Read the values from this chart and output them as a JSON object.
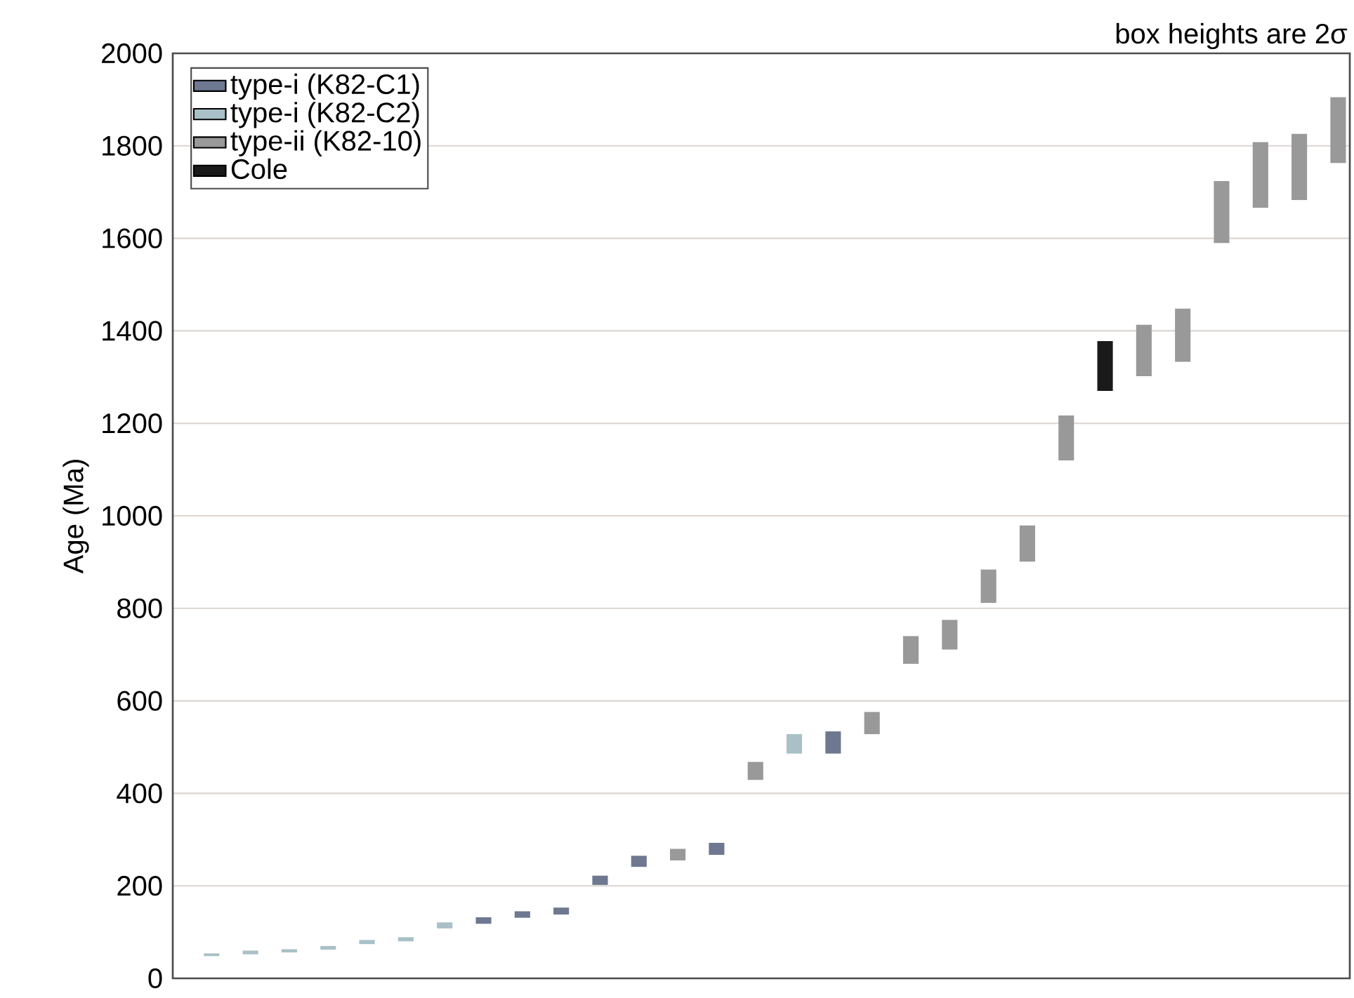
{
  "chart_data": {
    "type": "bar",
    "annotations": [
      "box heights are 2σ"
    ],
    "ylabel": "Age (Ma)",
    "categories": [
      null,
      null,
      null,
      null,
      null,
      null,
      null,
      null,
      null,
      null,
      null,
      null,
      null,
      null,
      null,
      null,
      null,
      null,
      null,
      null,
      null,
      null,
      null,
      null,
      null,
      null,
      null,
      null,
      null,
      null
    ],
    "series": [
      {
        "name": "type-i  (K82-C1)",
        "color": "#6e7890",
        "values": [
          null,
          null,
          null,
          null,
          null,
          null,
          null,
          14,
          14,
          15,
          20,
          24,
          null,
          26,
          null,
          null,
          48,
          null,
          null,
          null,
          null,
          null,
          null,
          null,
          null,
          null,
          null,
          null,
          null,
          null
        ],
        "base": [
          null,
          null,
          null,
          null,
          null,
          null,
          null,
          118,
          131,
          138,
          202,
          241,
          null,
          267,
          null,
          null,
          486,
          null,
          null,
          null,
          null,
          null,
          null,
          null,
          null,
          null,
          null,
          null,
          null,
          null
        ]
      },
      {
        "name": "type-i  (K82-C2)",
        "color": "#a9c0c8",
        "values": [
          6,
          8,
          7,
          8,
          9,
          9,
          13,
          null,
          null,
          null,
          null,
          null,
          null,
          null,
          null,
          42,
          null,
          null,
          null,
          null,
          null,
          null,
          null,
          null,
          null,
          null,
          null,
          null,
          null,
          null
        ],
        "base": [
          48,
          52,
          56,
          62,
          74,
          80,
          108,
          null,
          null,
          null,
          null,
          null,
          null,
          null,
          null,
          486,
          null,
          null,
          null,
          null,
          null,
          null,
          null,
          null,
          null,
          null,
          null,
          null,
          null,
          null
        ]
      },
      {
        "name": "type-ii (K82-10)",
        "color": "#999999",
        "values": [
          null,
          null,
          null,
          null,
          null,
          null,
          null,
          null,
          null,
          null,
          null,
          null,
          25,
          null,
          39,
          null,
          null,
          48,
          60,
          64,
          72,
          78,
          97,
          null,
          111,
          115,
          134,
          142,
          143,
          142
        ],
        "base": [
          null,
          null,
          null,
          null,
          null,
          null,
          null,
          null,
          null,
          null,
          null,
          null,
          255,
          null,
          429,
          null,
          null,
          528,
          680,
          711,
          812,
          901,
          1120,
          null,
          1302,
          1333,
          1590,
          1666,
          1683,
          1763
        ]
      },
      {
        "name": "Cole",
        "color": "#1a1a1a",
        "values": [
          null,
          null,
          null,
          null,
          null,
          null,
          null,
          null,
          null,
          null,
          null,
          null,
          null,
          null,
          null,
          null,
          null,
          null,
          null,
          null,
          null,
          null,
          null,
          108,
          null,
          null,
          null,
          null,
          null,
          null
        ],
        "base": [
          null,
          null,
          null,
          null,
          null,
          null,
          null,
          null,
          null,
          null,
          null,
          null,
          null,
          null,
          null,
          null,
          null,
          null,
          null,
          null,
          null,
          null,
          null,
          1270,
          null,
          null,
          null,
          null,
          null,
          null
        ]
      }
    ],
    "ylim": [
      0,
      2000
    ],
    "yticks": [
      0,
      200,
      400,
      600,
      800,
      1000,
      1200,
      1400,
      1600,
      1800,
      2000
    ],
    "grid": "y",
    "legend": "top left"
  }
}
